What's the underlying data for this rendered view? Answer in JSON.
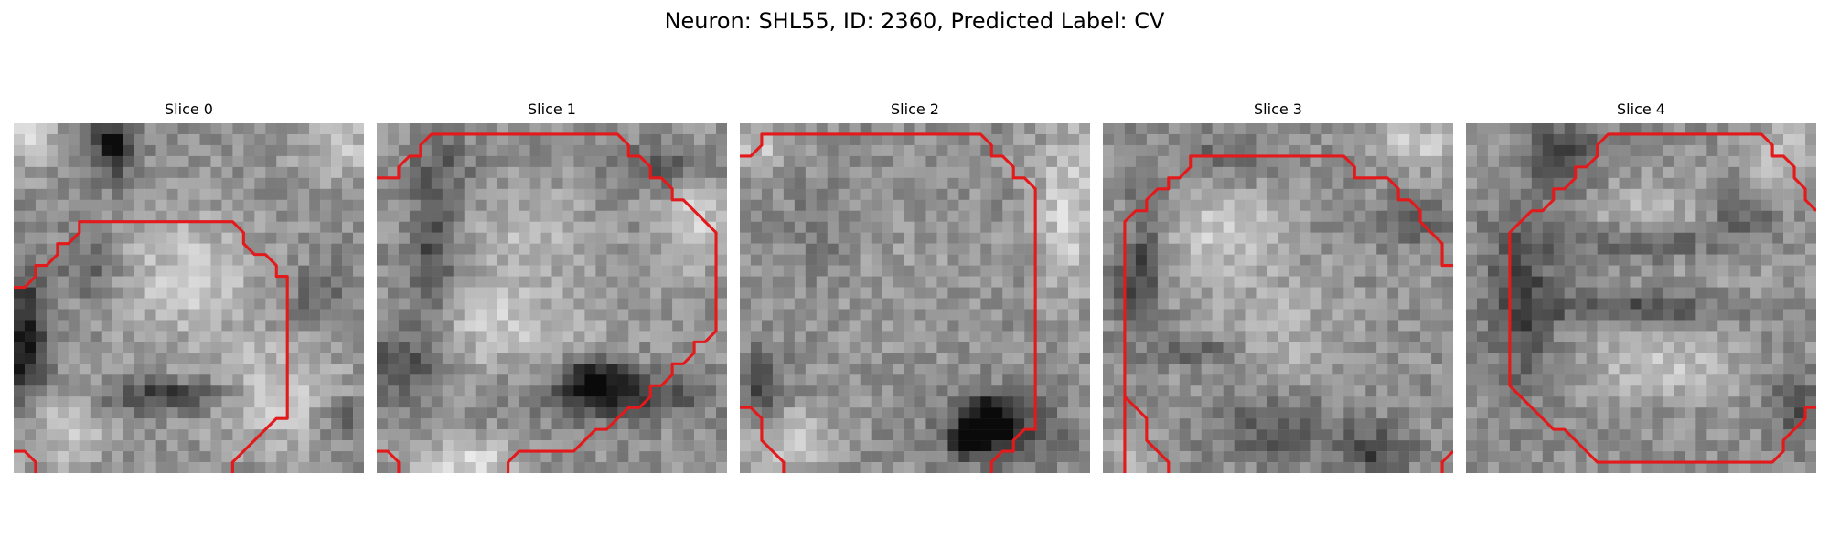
{
  "figure": {
    "title": "Neuron: SHL55, ID: 2360, Predicted Label: CV",
    "outline_color": "#e31a1c",
    "colormap": "grayscale",
    "panels": [
      {
        "title": "Slice 0"
      },
      {
        "title": "Slice 1"
      },
      {
        "title": "Slice 2"
      },
      {
        "title": "Slice 3"
      },
      {
        "title": "Slice 4"
      }
    ]
  }
}
